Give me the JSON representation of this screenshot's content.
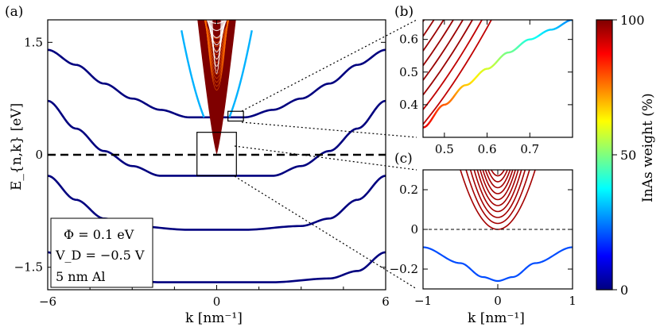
{
  "colors": {
    "colormap": [
      "#00007f",
      "#0000ff",
      "#007fff",
      "#00ffff",
      "#7fff7f",
      "#ffff00",
      "#ff7f00",
      "#ff0000",
      "#7f0000"
    ],
    "background": "#ffffff",
    "frame": "#000000"
  },
  "chart_data": [
    {
      "type": "line",
      "panel_label": "(a)",
      "xlabel": "k [nm⁻¹]",
      "ylabel": "E_{n,k} [eV]",
      "xlim": [
        -6,
        6
      ],
      "ylim": [
        -1.8,
        1.8
      ],
      "x_ticks": [
        "−6",
        "0",
        "6"
      ],
      "y_ticks": [
        "−1.5",
        "0",
        "1.5"
      ],
      "fermi_level_line": {
        "y": 0,
        "style": "dashed"
      },
      "inset_boxes": [
        {
          "x": [
            0.4,
            0.95
          ],
          "y": [
            0.45,
            0.58
          ],
          "links_to": "(b)"
        },
        {
          "x": [
            -0.7,
            0.7
          ],
          "y": [
            -0.28,
            0.3
          ],
          "links_to": "(c)"
        }
      ],
      "legend_text": {
        "line1": "Φ = 0.1 eV",
        "line2": "V_D = −0.5 V",
        "line3": "5 nm Al"
      },
      "series": [
        {
          "inas_weight": 0,
          "points": [
            [
              -6,
              0.72
            ],
            [
              -5,
              0.35
            ],
            [
              -4,
              0.05
            ],
            [
              -3,
              -0.15
            ],
            [
              -2,
              -0.28
            ],
            [
              0,
              -0.28
            ],
            [
              2,
              -0.28
            ],
            [
              3,
              -0.15
            ],
            [
              4,
              0.05
            ],
            [
              5,
              0.35
            ],
            [
              6,
              0.72
            ]
          ]
        },
        {
          "inas_weight": 0,
          "points": [
            [
              -6,
              -0.28
            ],
            [
              -5,
              -0.6
            ],
            [
              -4,
              -0.85
            ],
            [
              -3,
              -0.95
            ],
            [
              -1,
              -1
            ],
            [
              1,
              -1
            ],
            [
              3,
              -0.95
            ],
            [
              4,
              -0.85
            ],
            [
              5,
              -0.6
            ],
            [
              6,
              -0.28
            ]
          ]
        },
        {
          "inas_weight": 0,
          "points": [
            [
              -6,
              -1.3
            ],
            [
              -5,
              -1.55
            ],
            [
              -4,
              -1.65
            ],
            [
              -2,
              -1.7
            ],
            [
              2,
              -1.7
            ],
            [
              4,
              -1.65
            ],
            [
              5,
              -1.55
            ],
            [
              6,
              -1.3
            ]
          ]
        },
        {
          "inas_weight": 0,
          "points": [
            [
              -6,
              1.4
            ],
            [
              -5,
              1.2
            ],
            [
              -4,
              0.95
            ],
            [
              -3,
              0.75
            ],
            [
              -2,
              0.6
            ],
            [
              -1,
              0.5
            ],
            [
              1,
              0.5
            ],
            [
              2,
              0.6
            ],
            [
              3,
              0.75
            ],
            [
              4,
              0.95
            ],
            [
              5,
              1.2
            ],
            [
              6,
              1.4
            ]
          ]
        }
      ],
      "inas_cone": {
        "k_halfwidth_at_top": 0.7,
        "apex_energy": 0.0,
        "top_energy": 1.8,
        "inas_weight": 100
      }
    },
    {
      "type": "line",
      "panel_label": "(b)",
      "xlim": [
        0.45,
        0.8
      ],
      "ylim": [
        0.3,
        0.66
      ],
      "x_ticks": [
        "0.5",
        "0.6",
        "0.7"
      ],
      "y_ticks": [
        "0.4",
        "0.5",
        "0.6"
      ],
      "graded_band": {
        "points": [
          [
            0.45,
            0.33
          ],
          [
            0.5,
            0.4
          ],
          [
            0.55,
            0.46
          ],
          [
            0.6,
            0.51
          ],
          [
            0.65,
            0.56
          ],
          [
            0.7,
            0.6
          ],
          [
            0.75,
            0.63
          ],
          [
            0.8,
            0.66
          ]
        ],
        "inas_weight_from": 90,
        "inas_weight_to": 25
      },
      "red_bands_count": 9
    },
    {
      "type": "line",
      "panel_label": "(c)",
      "xlabel": "k [nm⁻¹]",
      "xlim": [
        -1,
        1
      ],
      "ylim": [
        -0.3,
        0.3
      ],
      "x_ticks": [
        "−1",
        "0",
        "1"
      ],
      "y_ticks": [
        "−0.2",
        "0",
        "0.2"
      ],
      "fermi_level_line": {
        "y": 0,
        "style": "dashed"
      },
      "lower_band": {
        "points": [
          [
            -1,
            -0.09
          ],
          [
            -0.5,
            -0.17
          ],
          [
            -0.2,
            -0.24
          ],
          [
            0,
            -0.26
          ],
          [
            0.2,
            -0.24
          ],
          [
            0.5,
            -0.17
          ],
          [
            1,
            -0.09
          ]
        ],
        "inas_weight": 20
      },
      "parabolas": {
        "count": 10,
        "apex_min": 0.0,
        "apex_step": 0.03,
        "curvature": 1.2,
        "inas_weight": 100
      }
    },
    {
      "type": "colorbar",
      "label": "InAs weight (%)",
      "ticks": [
        "0",
        "50",
        "100"
      ],
      "range": [
        0,
        100
      ]
    }
  ]
}
